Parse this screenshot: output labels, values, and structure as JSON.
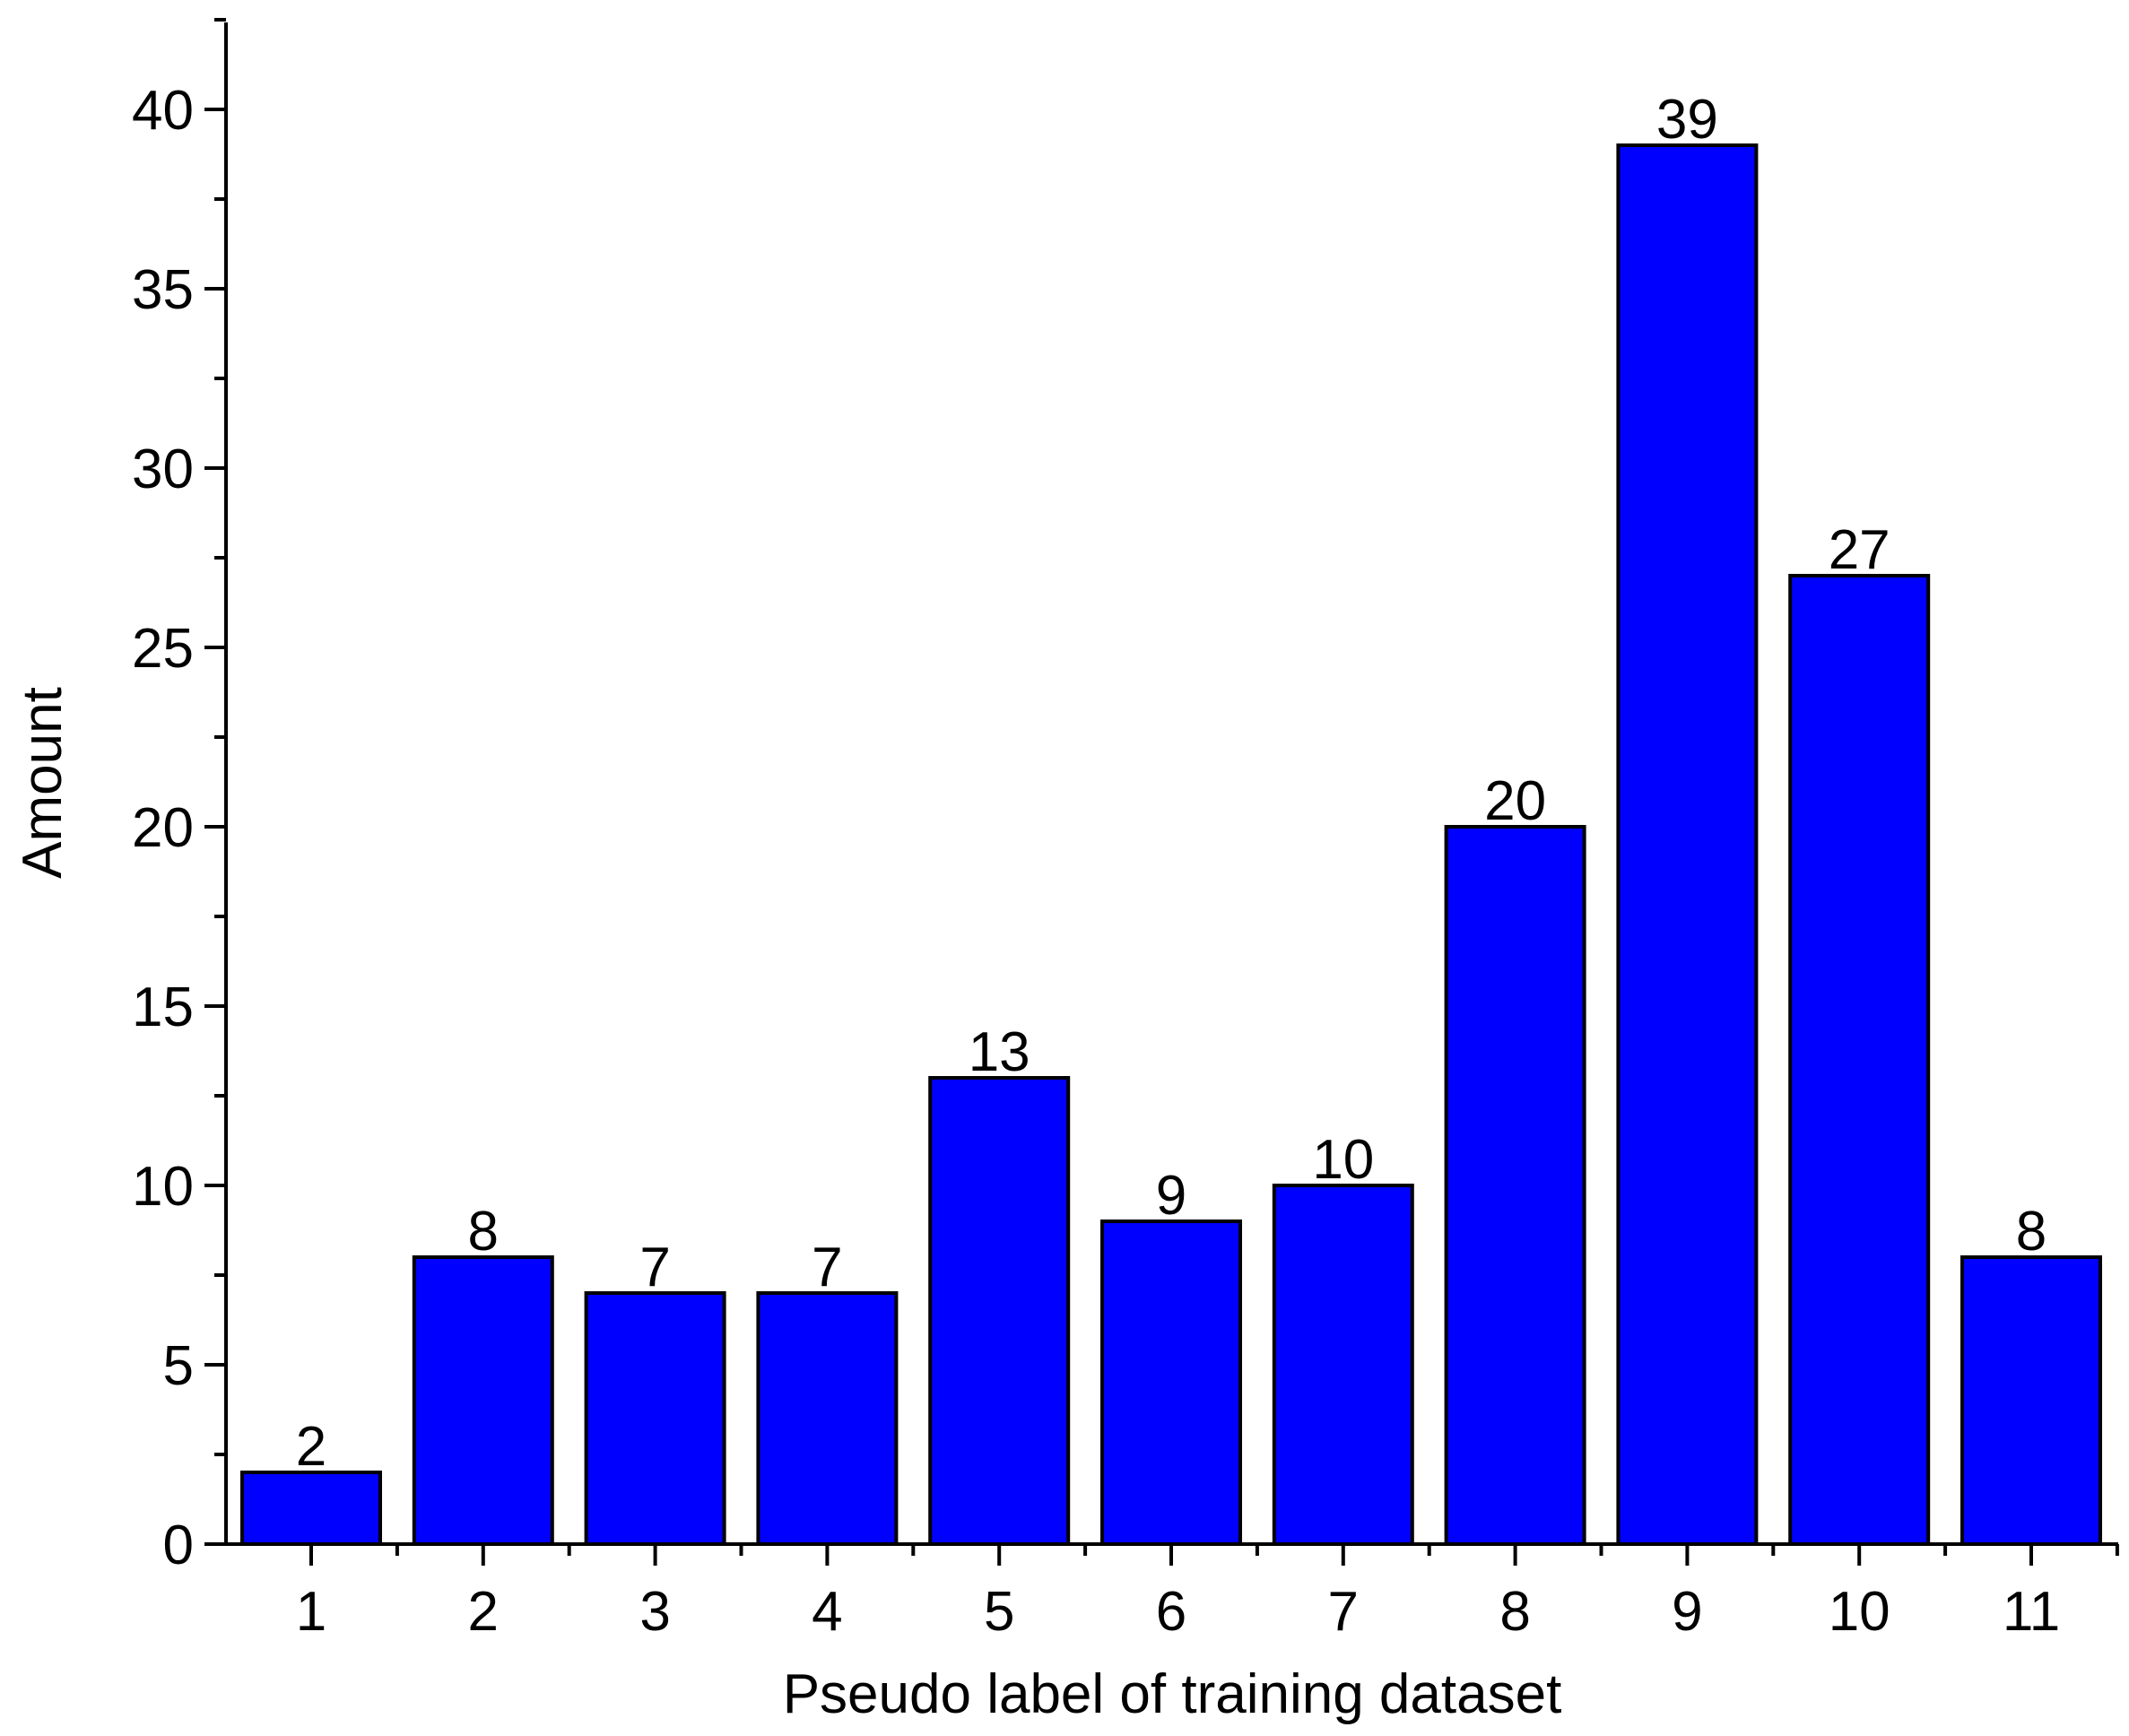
{
  "chart_data": {
    "type": "bar",
    "title": "",
    "xlabel": "Pseudo label of training dataset",
    "ylabel": "Amount",
    "categories": [
      "1",
      "2",
      "3",
      "4",
      "5",
      "6",
      "7",
      "8",
      "9",
      "10",
      "11"
    ],
    "values": [
      2,
      8,
      7,
      7,
      13,
      9,
      10,
      20,
      39,
      27,
      8
    ],
    "data_labels": [
      "2",
      "8",
      "7",
      "7",
      "13",
      "9",
      "10",
      "20",
      "39",
      "27",
      "8"
    ],
    "ylim": [
      0,
      42.5
    ],
    "y_ticks": [
      0,
      5,
      10,
      15,
      20,
      25,
      30,
      35,
      40
    ],
    "y_minor_step": 2.5,
    "grid": false,
    "legend": "none",
    "colors": {
      "bar_fill": "#0000FF",
      "bar_stroke": "#000000",
      "axis": "#000000",
      "text": "#000000"
    }
  }
}
